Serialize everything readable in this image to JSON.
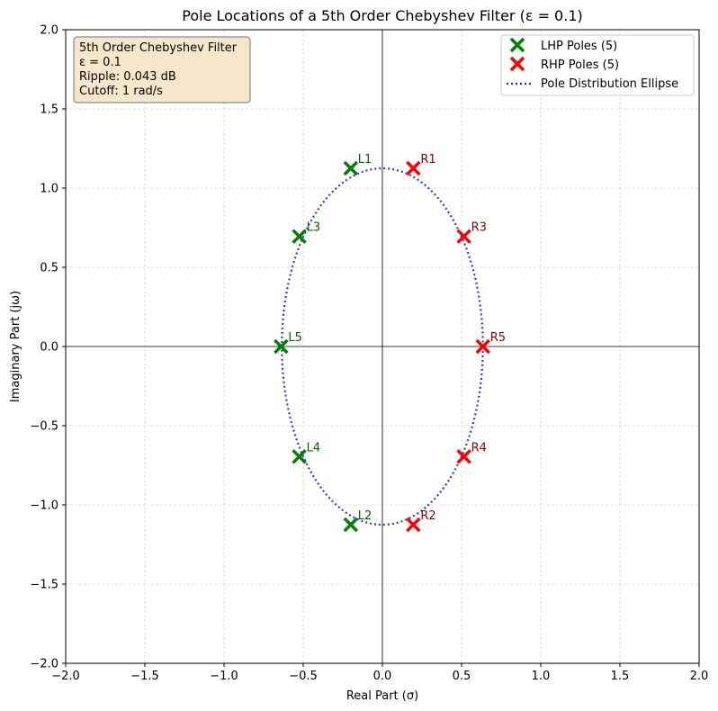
{
  "chart_data": {
    "type": "scatter",
    "title": "Pole Locations of a 5th Order Chebyshev Filter (ε = 0.1)",
    "xlabel": "Real Part (σ)",
    "ylabel": "Imaginary Part (jω)",
    "xlim": [
      -2.0,
      2.0
    ],
    "ylim": [
      -2.0,
      2.0
    ],
    "xticks": [
      -2.0,
      -1.5,
      -1.0,
      -0.5,
      0.0,
      0.5,
      1.0,
      1.5,
      2.0
    ],
    "yticks": [
      -2.0,
      -1.5,
      -1.0,
      -0.5,
      0.0,
      0.5,
      1.0,
      1.5,
      2.0
    ],
    "xtick_labels": [
      "−2.0",
      "−1.5",
      "−1.0",
      "−0.5",
      "0.0",
      "0.5",
      "1.0",
      "1.5",
      "2.0"
    ],
    "ytick_labels": [
      "−2.0",
      "−1.5",
      "−1.0",
      "−0.5",
      "0.0",
      "0.5",
      "1.0",
      "1.5",
      "2.0"
    ],
    "grid": true,
    "legend_position": "top-right",
    "series": [
      {
        "name": "LHP Poles (5)",
        "color": "#008000",
        "label_color": "#006400",
        "marker": "x",
        "points": [
          {
            "label": "L1",
            "x": -0.2,
            "y": 1.125
          },
          {
            "label": "L2",
            "x": -0.2,
            "y": -1.125
          },
          {
            "label": "L3",
            "x": -0.525,
            "y": 0.695
          },
          {
            "label": "L4",
            "x": -0.525,
            "y": -0.695
          },
          {
            "label": "L5",
            "x": -0.64,
            "y": 0.0
          }
        ]
      },
      {
        "name": "RHP Poles (5)",
        "color": "#ff0000",
        "label_color": "#8b0000",
        "marker": "x",
        "points": [
          {
            "label": "R1",
            "x": 0.195,
            "y": 1.125
          },
          {
            "label": "R2",
            "x": 0.195,
            "y": -1.125
          },
          {
            "label": "R3",
            "x": 0.515,
            "y": 0.695
          },
          {
            "label": "R4",
            "x": 0.515,
            "y": -0.695
          },
          {
            "label": "R5",
            "x": 0.635,
            "y": 0.0
          }
        ]
      }
    ],
    "ellipse": {
      "name": "Pole Distribution Ellipse",
      "color": "#2a2ae6",
      "center": [
        0.0,
        0.0
      ],
      "semi_axis_real": 0.635,
      "semi_axis_imag": 1.125
    },
    "info_box": {
      "lines": [
        "5th Order Chebyshev Filter",
        "ε = 0.1",
        "Ripple: 0.043 dB",
        "Cutoff: 1 rad/s"
      ],
      "background": "#f6e7cb",
      "border": "#8a8a8a"
    }
  }
}
